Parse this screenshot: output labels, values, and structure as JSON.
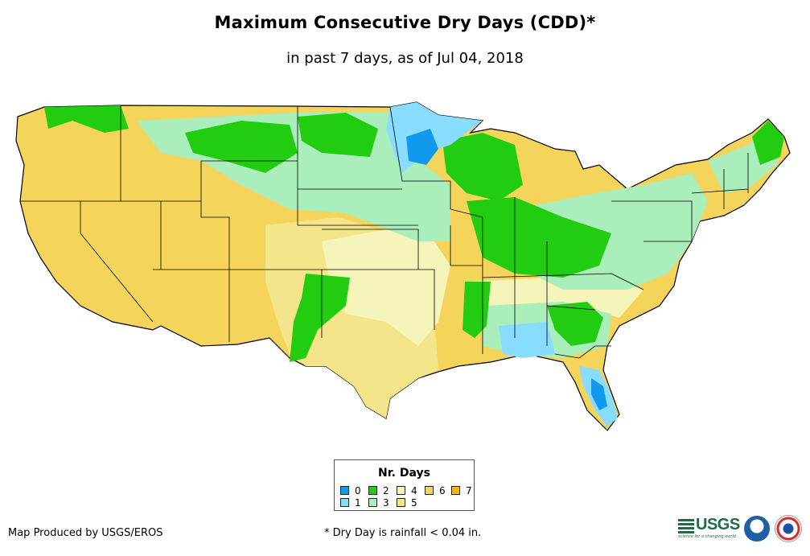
{
  "title": "Maximum Consecutive Dry Days (CDD)*",
  "subtitle": "in past 7 days, as of Jul 04, 2018",
  "legend": {
    "title": "Nr. Days",
    "items": [
      {
        "label": "0",
        "color": "#1199ee"
      },
      {
        "label": "1",
        "color": "#88ddff"
      },
      {
        "label": "2",
        "color": "#22cc11"
      },
      {
        "label": "3",
        "color": "#aaeebb"
      },
      {
        "label": "4",
        "color": "#f5f5bb"
      },
      {
        "label": "5",
        "color": "#f5e58a"
      },
      {
        "label": "6",
        "color": "#f5d45c"
      },
      {
        "label": "7",
        "color": "#f5b800"
      }
    ]
  },
  "footer": {
    "credit": "Map Produced by USGS/EROS",
    "note": "* Dry Day is rainfall < 0.04 in."
  },
  "logos": {
    "usgs": "USGS",
    "usgs_tagline": "science for a changing world",
    "noaa": "noaa-logo",
    "nws": "nws-logo"
  }
}
